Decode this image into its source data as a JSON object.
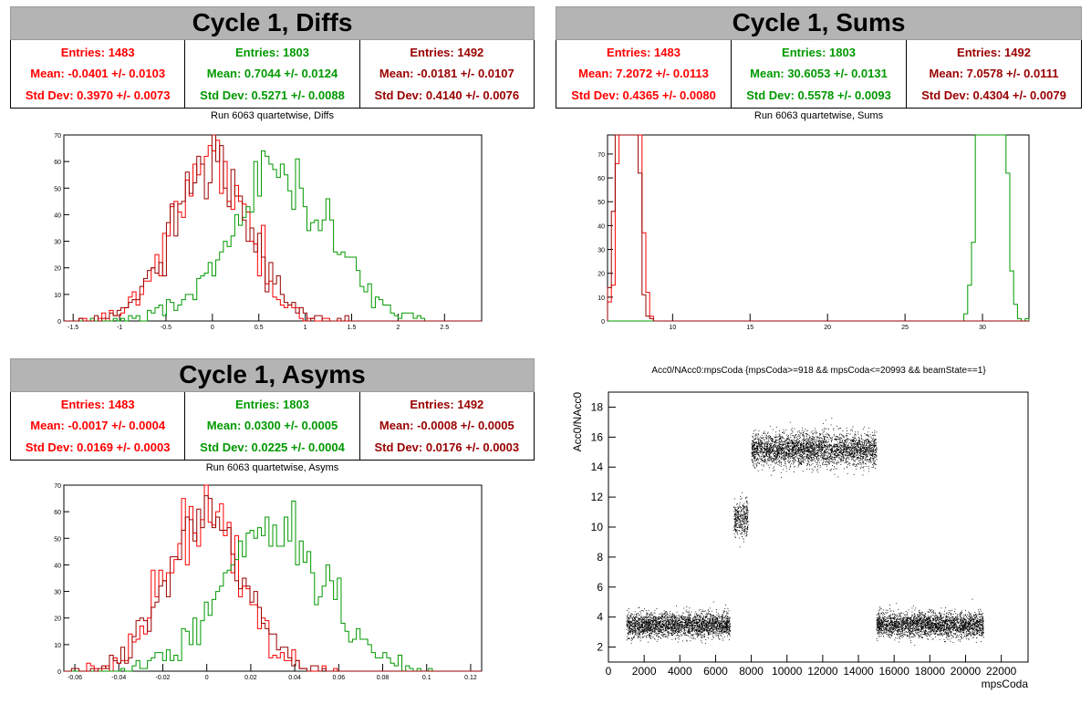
{
  "colors": {
    "c1": "#ff0000",
    "c2": "#009900",
    "c3": "#990000"
  },
  "panels": {
    "diffs": {
      "title": "Cycle 1, Diffs",
      "subtitle": "Run 6063 quartetwise, Diffs",
      "stats": [
        {
          "entries": "Entries: 1483",
          "mean": "Mean: -0.0401 +/- 0.0103",
          "std": "Std Dev: 0.3970 +/- 0.0073"
        },
        {
          "entries": "Entries: 1803",
          "mean": "Mean: 0.7044 +/- 0.0124",
          "std": "Std Dev: 0.5271 +/- 0.0088"
        },
        {
          "entries": "Entries: 1492",
          "mean": "Mean: -0.0181 +/- 0.0107",
          "std": "Std Dev: 0.4140 +/- 0.0076"
        }
      ]
    },
    "sums": {
      "title": "Cycle 1, Sums",
      "subtitle": "Run 6063 quartetwise, Sums",
      "stats": [
        {
          "entries": "Entries: 1483",
          "mean": "Mean: 7.2072 +/- 0.0113",
          "std": "Std Dev: 0.4365 +/- 0.0080"
        },
        {
          "entries": "Entries: 1803",
          "mean": "Mean: 30.6053 +/- 0.0131",
          "std": "Std Dev: 0.5578 +/- 0.0093"
        },
        {
          "entries": "Entries: 1492",
          "mean": "Mean: 7.0578 +/- 0.0111",
          "std": "Std Dev: 0.4304 +/- 0.0079"
        }
      ]
    },
    "asyms": {
      "title": "Cycle 1, Asyms",
      "subtitle": "Run 6063 quartetwise, Asyms",
      "stats": [
        {
          "entries": "Entries: 1483",
          "mean": "Mean: -0.0017 +/- 0.0004",
          "std": "Std Dev: 0.0169 +/- 0.0003"
        },
        {
          "entries": "Entries: 1803",
          "mean": "Mean: 0.0300 +/- 0.0005",
          "std": "Std Dev: 0.0225 +/- 0.0004"
        },
        {
          "entries": "Entries: 1492",
          "mean": "Mean: -0.0008 +/- 0.0005",
          "std": "Std Dev: 0.0176 +/- 0.0003"
        }
      ]
    },
    "scatter": {
      "title": "Acc0/NAcc0:mpsCoda {mpsCoda>=918 && mpsCoda<=20993 && beamState==1}"
    }
  },
  "chart_data": [
    {
      "type": "bar",
      "subtype": "step-histogram",
      "xlim": [
        -1.6,
        2.9
      ],
      "ylim": [
        0,
        70
      ],
      "xticks": [
        -1.5,
        -1,
        -0.5,
        0,
        0.5,
        1,
        1.5,
        2,
        2.5
      ],
      "xtick_labels": [
        "-1.5",
        "-1",
        "-0.5",
        "0",
        "0.5",
        "1",
        "1.5",
        "2",
        "2.5"
      ],
      "yticks": [
        0,
        10,
        20,
        30,
        40,
        50,
        60,
        70
      ],
      "series": [
        {
          "entries": 1483,
          "mean": -0.0401,
          "std": 0.397,
          "color_key": "c1"
        },
        {
          "entries": 1803,
          "mean": 0.7044,
          "std": 0.5271,
          "color_key": "c2"
        },
        {
          "entries": 1492,
          "mean": -0.0181,
          "std": 0.414,
          "color_key": "c3"
        }
      ]
    },
    {
      "type": "bar",
      "subtype": "step-histogram",
      "xlim": [
        5.8,
        33
      ],
      "ylim": [
        0,
        78
      ],
      "xticks": [
        10,
        15,
        20,
        25,
        30
      ],
      "xtick_labels": [
        "10",
        "15",
        "20",
        "25",
        "30"
      ],
      "yticks": [
        0,
        10,
        20,
        30,
        40,
        50,
        60,
        70
      ],
      "series": [
        {
          "entries": 1483,
          "mean": 7.2072,
          "std": 0.4365,
          "color_key": "c1"
        },
        {
          "entries": 1803,
          "mean": 30.6053,
          "std": 0.5578,
          "color_key": "c2"
        },
        {
          "entries": 1492,
          "mean": 7.0578,
          "std": 0.4304,
          "color_key": "c3"
        }
      ]
    },
    {
      "type": "bar",
      "subtype": "step-histogram",
      "xlim": [
        -0.065,
        0.125
      ],
      "ylim": [
        0,
        70
      ],
      "xticks": [
        -0.06,
        -0.04,
        -0.02,
        0,
        0.02,
        0.04,
        0.06,
        0.08,
        0.1,
        0.12
      ],
      "xtick_labels": [
        "-0.06",
        "-0.04",
        "-0.02",
        "0",
        "0.02",
        "0.04",
        "0.06",
        "0.08",
        "0.1",
        "0.12"
      ],
      "yticks": [
        0,
        10,
        20,
        30,
        40,
        50,
        60,
        70
      ],
      "series": [
        {
          "entries": 1483,
          "mean": -0.0017,
          "std": 0.0169,
          "color_key": "c1"
        },
        {
          "entries": 1803,
          "mean": 0.03,
          "std": 0.0225,
          "color_key": "c2"
        },
        {
          "entries": 1492,
          "mean": -0.0008,
          "std": 0.0176,
          "color_key": "c3"
        }
      ]
    },
    {
      "type": "scatter",
      "xlabel": "mpsCoda",
      "ylabel": "Acc0/NAcc0",
      "xlim": [
        0,
        23500
      ],
      "ylim": [
        1,
        19
      ],
      "xticks": [
        0,
        2000,
        4000,
        6000,
        8000,
        10000,
        12000,
        14000,
        16000,
        18000,
        20000,
        22000
      ],
      "xtick_labels": [
        "0",
        "2000",
        "4000",
        "6000",
        "8000",
        "10000",
        "12000",
        "14000",
        "16000",
        "18000",
        "20000",
        "22000"
      ],
      "yticks": [
        2,
        4,
        6,
        8,
        10,
        12,
        14,
        16,
        18
      ],
      "ytick_labels": [
        "2",
        "4",
        "6",
        "8",
        "10",
        "12",
        "14",
        "16",
        "18"
      ],
      "clusters": [
        {
          "x": [
            1000,
            6800
          ],
          "y_center": 3.5,
          "y_spread": 0.4
        },
        {
          "x": [
            7000,
            7800
          ],
          "y_center": 10.5,
          "y_spread": 0.6
        },
        {
          "x": [
            8000,
            15000
          ],
          "y_center": 15.2,
          "y_spread": 0.55
        },
        {
          "x": [
            15000,
            21000
          ],
          "y_center": 3.5,
          "y_spread": 0.4
        }
      ]
    }
  ]
}
